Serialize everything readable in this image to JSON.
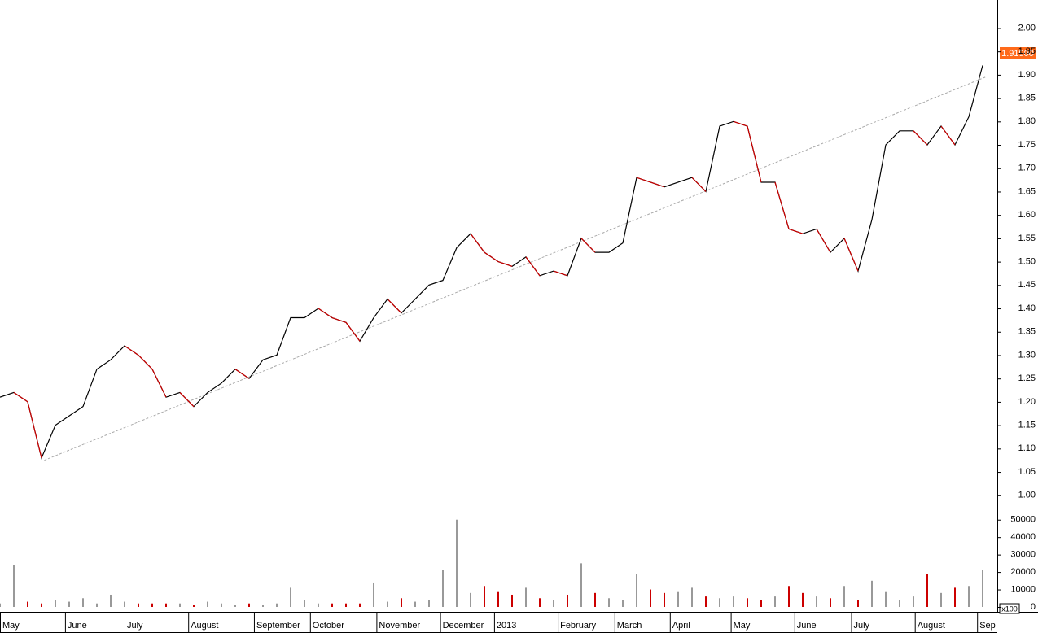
{
  "chart_data": [
    {
      "type": "line",
      "xlim": [
        0,
        72
      ],
      "xticks": [
        {
          "value": 0,
          "label": "May"
        },
        {
          "value": 4.7,
          "label": "June"
        },
        {
          "value": 9,
          "label": "July"
        },
        {
          "value": 13.6,
          "label": "August"
        },
        {
          "value": 18.35,
          "label": "September"
        },
        {
          "value": 22.4,
          "label": "October"
        },
        {
          "value": 27.2,
          "label": "November"
        },
        {
          "value": 31.8,
          "label": "December"
        },
        {
          "value": 35.7,
          "label": "2013"
        },
        {
          "value": 40.3,
          "label": "February"
        },
        {
          "value": 44.4,
          "label": "March"
        },
        {
          "value": 48.4,
          "label": "April"
        },
        {
          "value": 52.8,
          "label": "May"
        },
        {
          "value": 57.4,
          "label": "June"
        },
        {
          "value": 61.5,
          "label": "July"
        },
        {
          "value": 66.1,
          "label": "August"
        },
        {
          "value": 70.6,
          "label": "Sep"
        }
      ],
      "ylim": [
        0.97,
        2.06
      ],
      "yticks": [
        {
          "value": 1,
          "label": "1.00"
        },
        1.05,
        {
          "value": 1.1,
          "label": "1.10"
        },
        1.15,
        {
          "value": 1.2,
          "label": "1.20"
        },
        1.25,
        {
          "value": 1.3,
          "label": "1.30"
        },
        1.35,
        {
          "value": 1.4,
          "label": "1.40"
        },
        1.45,
        {
          "value": 1.5,
          "label": "1.50"
        },
        1.55,
        {
          "value": 1.6,
          "label": "1.60"
        },
        1.65,
        {
          "value": 1.7,
          "label": "1.70"
        },
        1.75,
        {
          "value": 1.8,
          "label": "1.80"
        },
        1.85,
        {
          "value": 1.9,
          "label": "1.90"
        },
        1.95,
        {
          "value": 2,
          "label": "2.00"
        }
      ],
      "values": [
        1.21,
        1.22,
        1.2,
        1.08,
        1.15,
        1.17,
        1.19,
        1.27,
        1.29,
        1.32,
        1.3,
        1.27,
        1.21,
        1.22,
        1.19,
        1.22,
        1.24,
        1.27,
        1.25,
        1.29,
        1.3,
        1.38,
        1.38,
        1.4,
        1.38,
        1.37,
        1.33,
        1.38,
        1.42,
        1.39,
        1.42,
        1.45,
        1.46,
        1.53,
        1.56,
        1.52,
        1.5,
        1.49,
        1.51,
        1.47,
        1.48,
        1.47,
        1.55,
        1.52,
        1.52,
        1.54,
        1.68,
        1.67,
        1.66,
        1.67,
        1.68,
        1.65,
        1.79,
        1.8,
        1.79,
        1.67,
        1.67,
        1.57,
        1.56,
        1.57,
        1.52,
        1.55,
        1.48,
        1.59,
        1.75,
        1.78,
        1.78,
        1.75,
        1.79,
        1.75,
        1.81,
        1.92
      ],
      "up_color": "#000000",
      "down_color": "#cc0000",
      "trendline": {
        "x": [
          3.2,
          71.2
        ],
        "values": [
          1.075,
          1.895
        ],
        "color": "#aaaaaa"
      },
      "last_price_label": "1.91900",
      "last_price_color": "#ff6a1a"
    },
    {
      "type": "bar",
      "xlim": [
        0,
        72
      ],
      "ylim": [
        0,
        55000
      ],
      "yticks": [
        0,
        10000,
        20000,
        30000,
        40000,
        50000
      ],
      "values": [
        2000,
        24000,
        3000,
        2000,
        4000,
        3000,
        5000,
        2000,
        7000,
        3000,
        2000,
        2000,
        2000,
        2000,
        1000,
        3000,
        2000,
        1000,
        2000,
        1000,
        2000,
        11000,
        4000,
        2000,
        2000,
        2000,
        2000,
        14000,
        3000,
        5000,
        3000,
        4000,
        21000,
        50000,
        8000,
        12000,
        9000,
        7000,
        11000,
        5000,
        4000,
        7000,
        25000,
        8000,
        5000,
        4000,
        19000,
        10000,
        8000,
        9000,
        11000,
        6000,
        5000,
        6000,
        5000,
        4000,
        6000,
        12000,
        8000,
        6000,
        5000,
        12000,
        4000,
        15000,
        9000,
        4000,
        6000,
        19000,
        8000,
        11000,
        12000,
        21000
      ],
      "up_color": "#999999",
      "down_color": "#cc0000",
      "unit_label": "x100"
    }
  ]
}
